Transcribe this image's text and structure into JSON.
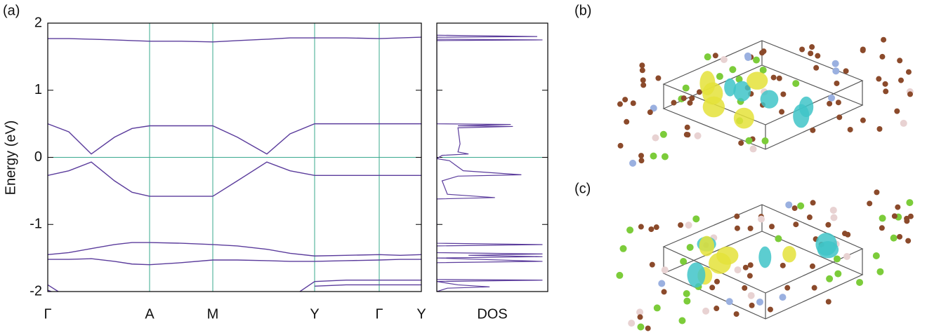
{
  "chart_data": [
    {
      "type": "line",
      "panel_label": "(a)",
      "ylabel": "Energy (eV)",
      "x": [
        0,
        0.3,
        0.62,
        0.95,
        1.2,
        1.45,
        1.9,
        2.35,
        2.7,
        3.12,
        3.45,
        3.8,
        4.25,
        4.72,
        5.02,
        5.32
      ],
      "xlim": [
        0,
        5.32
      ],
      "xticks": [
        {
          "value": 0,
          "label": "Γ"
        },
        {
          "value": 1.45,
          "label": "A"
        },
        {
          "value": 2.35,
          "label": "M"
        },
        {
          "value": 3.8,
          "label": "Y"
        },
        {
          "value": 4.72,
          "label": "Γ"
        },
        {
          "value": 5.32,
          "label": "Y"
        }
      ],
      "ylim": [
        -2,
        2
      ],
      "yticks": [
        -2,
        -1,
        0,
        1,
        2
      ],
      "hlines": [
        0
      ],
      "grid": true,
      "grid_color": "#3aa88e",
      "series": [
        {
          "color": "#5b3c9c",
          "values": [
            1.77,
            1.77,
            1.76,
            1.75,
            1.74,
            1.73,
            1.73,
            1.72,
            1.74,
            1.76,
            1.78,
            1.78,
            1.78,
            1.77,
            1.78,
            1.79
          ]
        },
        {
          "color": "#5b3c9c",
          "values": [
            0.5,
            0.38,
            0.05,
            0.3,
            0.43,
            0.47,
            0.47,
            0.47,
            0.3,
            0.05,
            0.35,
            0.5,
            0.5,
            0.5,
            0.5,
            0.5
          ]
        },
        {
          "color": "#5b3c9c",
          "values": [
            -0.27,
            -0.2,
            -0.07,
            -0.35,
            -0.52,
            -0.58,
            -0.58,
            -0.58,
            -0.35,
            -0.07,
            -0.2,
            -0.27,
            -0.27,
            -0.27,
            -0.27,
            -0.27
          ]
        },
        {
          "color": "#5b3c9c",
          "values": [
            -1.45,
            -1.42,
            -1.36,
            -1.3,
            -1.27,
            -1.27,
            -1.28,
            -1.3,
            -1.32,
            -1.37,
            -1.43,
            -1.47,
            -1.46,
            -1.45,
            -1.46,
            -1.45
          ]
        },
        {
          "color": "#5b3c9c",
          "values": [
            -1.52,
            -1.52,
            -1.51,
            -1.55,
            -1.59,
            -1.6,
            -1.57,
            -1.53,
            -1.53,
            -1.54,
            -1.55,
            -1.55,
            -1.54,
            -1.53,
            -1.52,
            -1.52
          ]
        },
        {
          "color": "#5b3c9c",
          "values": [
            -1.9,
            -2.1,
            null,
            null,
            null,
            null,
            null,
            null,
            null,
            null,
            -2.1,
            -1.85,
            -1.83,
            -1.83,
            -1.83,
            -1.83
          ]
        },
        {
          "color": "#5b3c9c",
          "values": [
            -1.98,
            -2.1,
            null,
            null,
            null,
            null,
            null,
            null,
            null,
            null,
            null,
            -1.92,
            -1.9,
            -1.9,
            -1.9,
            -1.9
          ]
        }
      ]
    },
    {
      "type": "dos",
      "xlabel": "DOS",
      "xlim": [
        0,
        1.05
      ],
      "ylim": [
        -2,
        2
      ],
      "yticks": [
        -2,
        -1,
        0,
        1,
        2
      ],
      "hlines": [
        0
      ],
      "grid_color": "#3aa88e",
      "series": [
        {
          "color": "#5b3c9c",
          "y": [
            1.82,
            1.8,
            1.79,
            1.76,
            1.75,
            1.74,
            0.5,
            0.49,
            0.47,
            0.46,
            0.44,
            0.2,
            0.08,
            0.05,
            0.03,
            0,
            -0.02,
            -0.05,
            -0.12,
            -0.2,
            -0.26,
            -0.28,
            -0.35,
            -0.55,
            -0.6,
            -0.62,
            -1.28,
            -1.3,
            -1.32,
            -1.42,
            -1.44,
            -1.46,
            -1.48,
            -1.5,
            -1.55,
            -1.57,
            -1.82,
            -1.83,
            -1.85,
            -1.9,
            -1.93,
            -1.95,
            -2
          ],
          "x": [
            0,
            0.95,
            0,
            0,
            1,
            0,
            0,
            0.7,
            0.2,
            0.72,
            0.2,
            0.22,
            0.2,
            0.3,
            0.05,
            0.02,
            0,
            0.12,
            0.18,
            0.25,
            0.8,
            0.2,
            0.05,
            0.1,
            0.55,
            0,
            0,
            1,
            0,
            0,
            1,
            0.3,
            1,
            0,
            1,
            0,
            0,
            1,
            0,
            0.2,
            0.5,
            0.1,
            0
          ]
        }
      ]
    }
  ],
  "images": [
    {
      "label": "(b)"
    },
    {
      "label": "(c)"
    }
  ]
}
